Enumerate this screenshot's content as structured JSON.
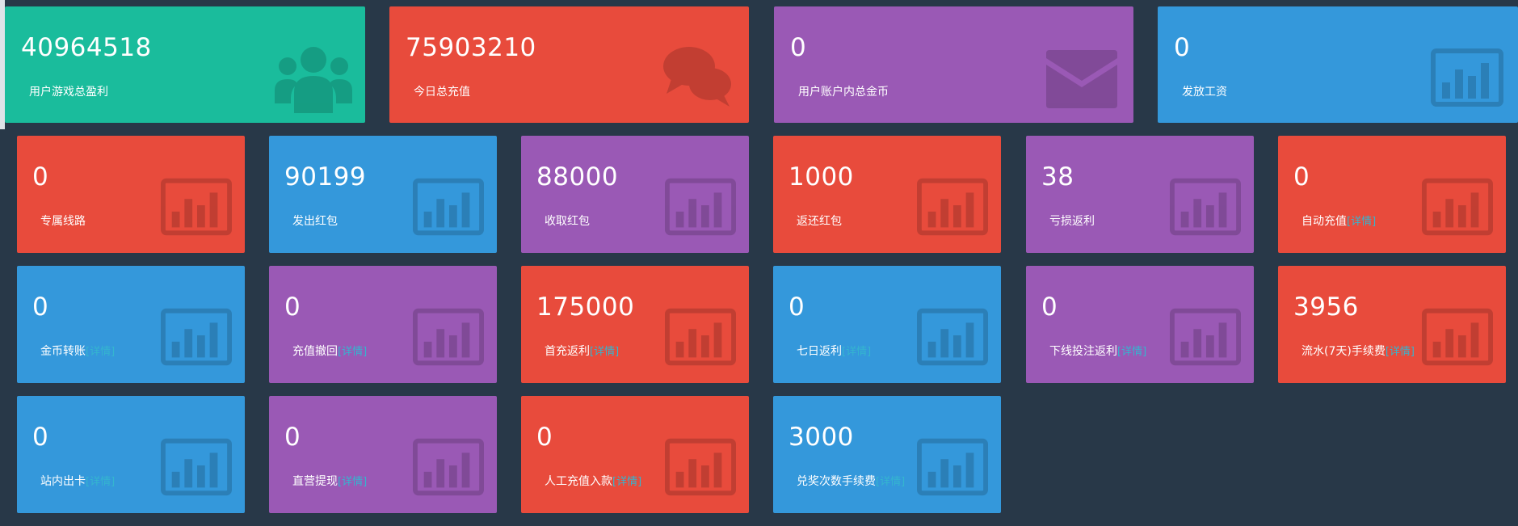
{
  "top_cards": [
    {
      "value": "40964518",
      "label": "用户游戏总盈利",
      "color": "#1abc9c",
      "icon": "users-icon"
    },
    {
      "value": "75903210",
      "label": "今日总充值",
      "color": "#e84b3c",
      "icon": "chat-bubbles-icon"
    },
    {
      "value": "0",
      "label": "用户账户内总金币",
      "color": "#9a59b5",
      "icon": "envelope-icon"
    },
    {
      "value": "0",
      "label": "发放工资",
      "color": "#3498db",
      "icon": "bar-chart-icon"
    }
  ],
  "rows": [
    [
      {
        "value": "0",
        "label": "专属线路",
        "detail": ""
      },
      {
        "value": "90199",
        "label": "发出红包",
        "detail": ""
      },
      {
        "value": "88000",
        "label": "收取红包",
        "detail": ""
      },
      {
        "value": "1000",
        "label": "返还红包",
        "detail": ""
      },
      {
        "value": "38",
        "label": "亏损返利",
        "detail": ""
      },
      {
        "value": "0",
        "label": "自动充值",
        "detail": "[详情]"
      }
    ],
    [
      {
        "value": "0",
        "label": "金币转账",
        "detail": "[详情]"
      },
      {
        "value": "0",
        "label": "充值撤回",
        "detail": "[详情]"
      },
      {
        "value": "175000",
        "label": "首充返利",
        "detail": "[详情]"
      },
      {
        "value": "0",
        "label": "七日返利",
        "detail": "[详情]"
      },
      {
        "value": "0",
        "label": "下线投注返利",
        "detail": "[详情]"
      },
      {
        "value": "3956",
        "label": "流水(7天)手续费",
        "detail": "[详情]"
      }
    ],
    [
      {
        "value": "0",
        "label": "站内出卡",
        "detail": "[详情]"
      },
      {
        "value": "0",
        "label": "直营提现",
        "detail": "[详情]"
      },
      {
        "value": "0",
        "label": "人工充值入款",
        "detail": "[详情]"
      },
      {
        "value": "3000",
        "label": "兑奖次数手续费",
        "detail": "[详情]"
      }
    ]
  ],
  "colors": {
    "background": "#283848",
    "green": "#1abc9c",
    "red": "#e84b3c",
    "purple": "#9a59b5",
    "blue": "#3498db",
    "detail_link": "#34b5cf"
  }
}
